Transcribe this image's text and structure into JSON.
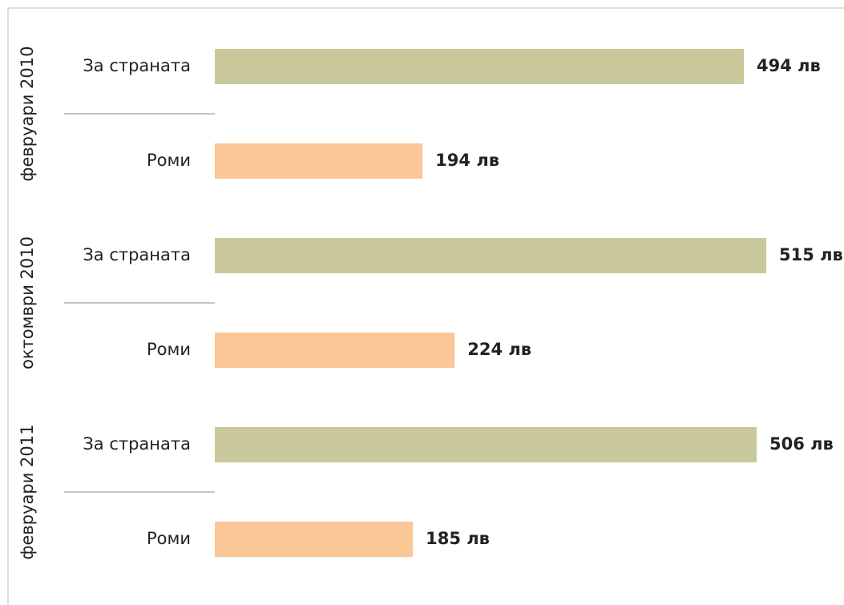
{
  "chart_data": {
    "type": "bar",
    "orientation": "horizontal",
    "groups": [
      "февруари 2010",
      "октомври 2010",
      "февруари 2011"
    ],
    "series": [
      {
        "name": "За страната",
        "color": "#c8c89b",
        "values": [
          494,
          515,
          506
        ],
        "value_labels": [
          "494 лв",
          "515 лв",
          "506 лв"
        ]
      },
      {
        "name": "Роми",
        "color": "#fac796",
        "values": [
          194,
          224,
          185
        ],
        "value_labels": [
          "194 лв",
          "224 лв",
          "185 лв"
        ]
      }
    ]
  }
}
